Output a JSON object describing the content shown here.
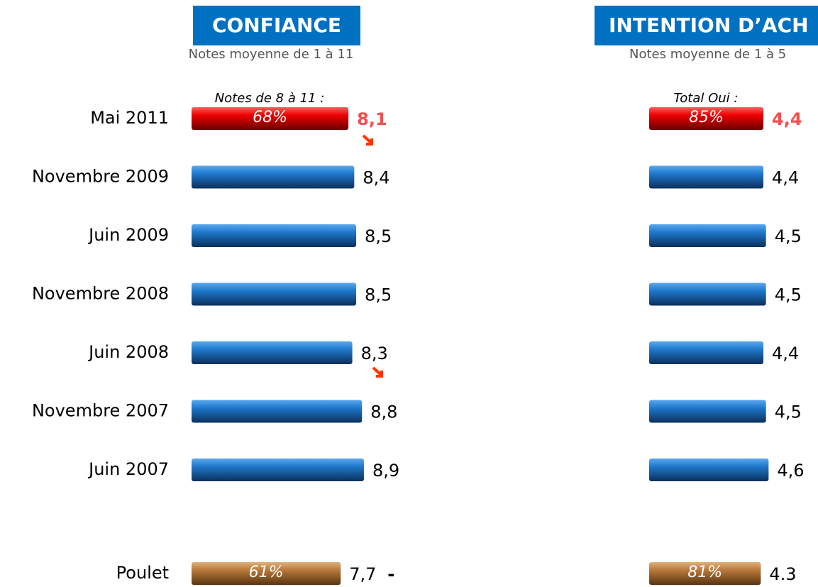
{
  "chart_data": [
    {
      "type": "bar",
      "title": "CONFIANCE",
      "subtitle": "Notes moyenne de 1 à 11",
      "annotation": "Notes de 8 à 11 :",
      "categories": [
        "Mai 2011",
        "Novembre 2009",
        "Juin 2009",
        "Novembre 2008",
        "Juin 2008",
        "Novembre 2007",
        "Juin 2007",
        "Poulet"
      ],
      "values": [
        8.1,
        8.4,
        8.5,
        8.5,
        8.3,
        8.8,
        8.9,
        7.7
      ],
      "value_labels": [
        "8,1",
        "8,4",
        "8,5",
        "8,5",
        "8,3",
        "8,8",
        "8,9",
        "7,7"
      ],
      "inner_values": [
        68,
        null,
        null,
        null,
        null,
        null,
        null,
        61
      ],
      "inner_value_labels": [
        "68%",
        null,
        null,
        null,
        null,
        null,
        null,
        "61%"
      ],
      "colors": [
        "red",
        "blue",
        "blue",
        "blue",
        "blue",
        "blue",
        "blue",
        "brown"
      ],
      "trailing_note": "-"
    },
    {
      "type": "bar",
      "title": "INTENTION D’ACH",
      "subtitle": "Notes moyenne de 1 à 5",
      "annotation": "Total Oui :",
      "categories": [
        "Mai 2011",
        "Novembre 2009",
        "Juin 2009",
        "Novembre 2008",
        "Juin 2008",
        "Novembre 2007",
        "Juin 2007",
        "Poulet"
      ],
      "values": [
        4.4,
        4.4,
        4.5,
        4.5,
        4.4,
        4.5,
        4.6,
        4.3
      ],
      "value_labels": [
        "4,4",
        "4,4",
        "4,5",
        "4,5",
        "4,4",
        "4,5",
        "4,6",
        "4.3"
      ],
      "inner_values": [
        85,
        null,
        null,
        null,
        null,
        null,
        null,
        81
      ],
      "inner_value_labels": [
        "85%",
        null,
        null,
        null,
        null,
        null,
        null,
        "81%"
      ],
      "colors": [
        "red",
        "blue",
        "blue",
        "blue",
        "blue",
        "blue",
        "blue",
        "brown"
      ]
    }
  ]
}
